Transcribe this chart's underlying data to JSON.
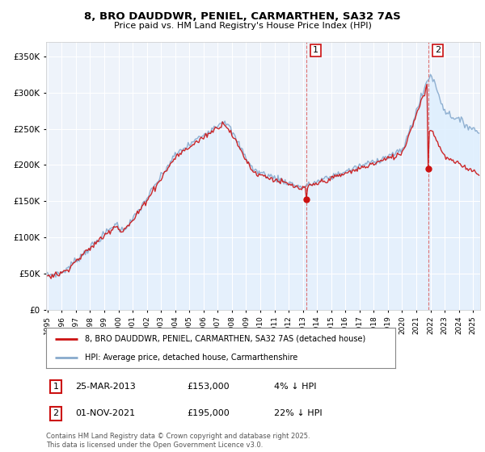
{
  "title": "8, BRO DAUDDWR, PENIEL, CARMARTHEN, SA32 7AS",
  "subtitle": "Price paid vs. HM Land Registry's House Price Index (HPI)",
  "ytick_values": [
    0,
    50000,
    100000,
    150000,
    200000,
    250000,
    300000,
    350000
  ],
  "ylim": [
    0,
    370000
  ],
  "xlim_start": 1994.9,
  "xlim_end": 2025.5,
  "sale1": {
    "date_label": "25-MAR-2013",
    "year": 2013.23,
    "price": 153000,
    "note": "4% ↓ HPI"
  },
  "sale2": {
    "date_label": "01-NOV-2021",
    "year": 2021.83,
    "price": 195000,
    "note": "22% ↓ HPI"
  },
  "red_color": "#cc1111",
  "blue_fill_color": "#ddeeff",
  "blue_line_color": "#88aacc",
  "annotation_box_color": "#cc1111",
  "legend_label_red": "8, BRO DAUDDWR, PENIEL, CARMARTHEN, SA32 7AS (detached house)",
  "legend_label_blue": "HPI: Average price, detached house, Carmarthenshire",
  "footer": "Contains HM Land Registry data © Crown copyright and database right 2025.\nThis data is licensed under the Open Government Licence v3.0.",
  "background_plot": "#eef3fa",
  "background_fig": "#ffffff",
  "grid_color": "#ffffff",
  "vline_color": "#dd6666"
}
